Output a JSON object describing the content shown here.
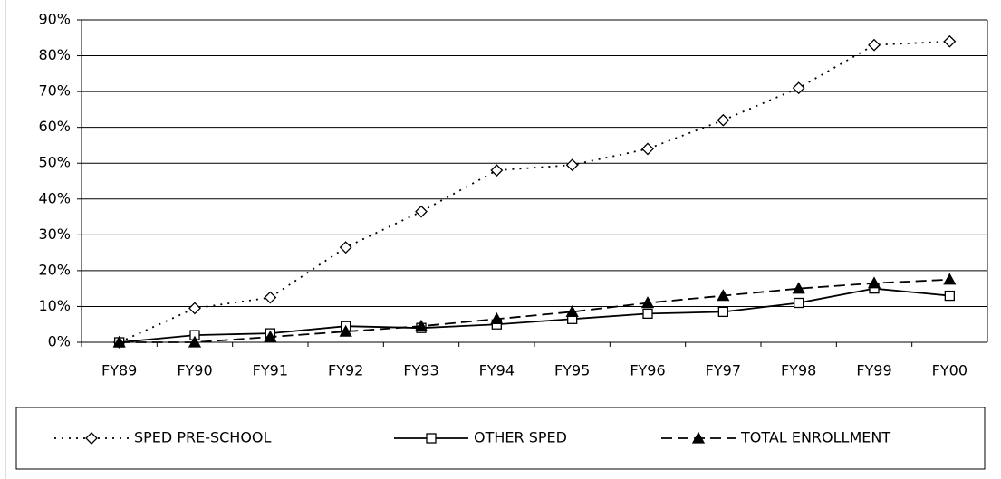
{
  "chart_data": {
    "type": "line",
    "categories": [
      "FY89",
      "FY90",
      "FY91",
      "FY92",
      "FY93",
      "FY94",
      "FY95",
      "FY96",
      "FY97",
      "FY98",
      "FY99",
      "FY00"
    ],
    "series": [
      {
        "name": "SPED PRE-SCHOOL",
        "color": "#000000",
        "marker": "diamond",
        "line_style": "dotted",
        "values": [
          0,
          9.5,
          12.5,
          26.5,
          36.5,
          48,
          49.5,
          54,
          62,
          71,
          83,
          84
        ]
      },
      {
        "name": "OTHER SPED",
        "color": "#000000",
        "marker": "square",
        "line_style": "solid",
        "values": [
          0,
          2,
          2.5,
          4.5,
          4,
          5,
          6.5,
          8,
          8.5,
          11,
          15,
          13
        ]
      },
      {
        "name": "TOTAL ENROLLMENT",
        "color": "#000000",
        "marker": "triangle",
        "line_style": "dashed",
        "values": [
          0,
          0,
          1.5,
          3,
          4.5,
          6.5,
          8.5,
          11,
          13,
          15,
          16.5,
          17.5
        ]
      }
    ],
    "ylim": [
      0,
      90
    ],
    "yticks": [
      {
        "value": 0,
        "label": "0%"
      },
      {
        "value": 10,
        "label": "10%"
      },
      {
        "value": 20,
        "label": "20%"
      },
      {
        "value": 30,
        "label": "30%"
      },
      {
        "value": 40,
        "label": "40%"
      },
      {
        "value": 50,
        "label": "50%"
      },
      {
        "value": 60,
        "label": "60%"
      },
      {
        "value": 70,
        "label": "70%"
      },
      {
        "value": 80,
        "label": "80%"
      },
      {
        "value": 90,
        "label": "90%"
      }
    ],
    "grid": true,
    "legend": "bottom"
  }
}
